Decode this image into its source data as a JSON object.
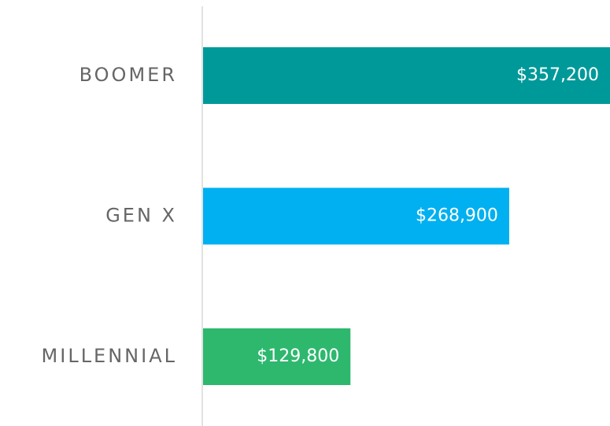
{
  "chart_data": {
    "type": "bar",
    "orientation": "horizontal",
    "categories": [
      "BOOMER",
      "GEN X",
      "MILLENNIAL"
    ],
    "values": [
      357200,
      268900,
      129800
    ],
    "value_labels": [
      "$357,200",
      "$268,900",
      "$129,800"
    ],
    "colors": [
      "#009999",
      "#00b0f0",
      "#2db86e"
    ]
  }
}
